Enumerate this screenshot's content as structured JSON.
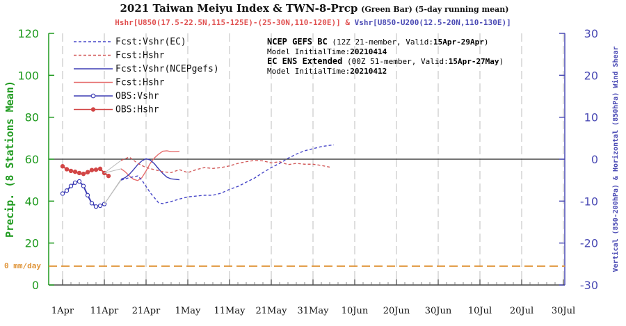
{
  "chart_data": {
    "type": "line",
    "title_main": "2021 Taiwan Meiyu Index & TWN-8-Prcp",
    "title_sub": "(Green Bar) (5-day running mean)",
    "subtitle_hshr": "Hshr[U850(17.5-22.5N,115-125E)-(25-30N,110-120E)]",
    "subtitle_amp": "&",
    "subtitle_vshr": "Vshr[U850-U200(12.5-20N,110-130E)]",
    "ylabel_left": "Precip. (8 Stations Mean)",
    "ylabel_right": "Vertical (850-200hPa) & Horizontal (850hPa) Wind Shear",
    "ylim_left": [
      0,
      120
    ],
    "ylim_right": [
      -30,
      30
    ],
    "left_ticks": [
      "0",
      "20",
      "40",
      "60",
      "80",
      "100",
      "120"
    ],
    "right_ticks": [
      "-30",
      "-20",
      "-10",
      "0",
      "10",
      "20",
      "30"
    ],
    "x_tick_labels": [
      "1Apr",
      "11Apr",
      "21Apr",
      "1May",
      "11May",
      "21May",
      "31May",
      "10Jun",
      "20Jun",
      "30Jun",
      "10Jul",
      "20Jul",
      "30Jul"
    ],
    "x_range_days": [
      0,
      121
    ],
    "zero_mm_label": "0 mm/day",
    "legend": [
      {
        "label": "Fcst:Vshr(EC)",
        "color": "#4646c8",
        "style": "dashed"
      },
      {
        "label": "Fcst:Hshr",
        "color": "#d25a5a",
        "style": "dashed"
      },
      {
        "label": "Fcst:Vshr(NCEPgefs)",
        "color": "#3c3cb4",
        "style": "solid"
      },
      {
        "label": "Fcst:Hshr",
        "color": "#e66e6e",
        "style": "solid"
      },
      {
        "label": "OBS:Vshr",
        "color": "#3c3cb4",
        "style": "open-circle"
      },
      {
        "label": "OBS:Hshr",
        "color": "#d24646",
        "style": "filled-circle"
      }
    ],
    "info": {
      "ncep_title": "NCEP GEFS BC",
      "ncep_detail": " (12Z 21-member, Valid:",
      "ncep_valid": "15Apr-29Apr",
      "ncep_close": ")",
      "ncep_init_label": "Model InitialTime:",
      "ncep_init_value": "20210414",
      "ec_title": "EC ENS Extended",
      "ec_detail": " (00Z 51-member, Valid:",
      "ec_valid": "15Apr-27May",
      "ec_close": ")",
      "ec_init_label": "Model InitialTime:",
      "ec_init_value": "20210412"
    },
    "series": [
      {
        "name": "OBS:Hshr",
        "axis": "right",
        "color": "#d24646",
        "points": [
          [
            0,
            -1.7
          ],
          [
            1,
            -2.4
          ],
          [
            2,
            -2.8
          ],
          [
            3,
            -3.0
          ],
          [
            4,
            -3.3
          ],
          [
            5,
            -3.5
          ],
          [
            6,
            -3.1
          ],
          [
            7,
            -2.6
          ],
          [
            8,
            -2.5
          ],
          [
            9,
            -2.3
          ],
          [
            10,
            -3.3
          ],
          [
            11,
            -4.0
          ]
        ]
      },
      {
        "name": "OBS:Vshr",
        "axis": "right",
        "color": "#3c3cb4",
        "points": [
          [
            0,
            -8.2
          ],
          [
            1,
            -7.5
          ],
          [
            2,
            -6.4
          ],
          [
            3,
            -5.6
          ],
          [
            4,
            -5.3
          ],
          [
            5,
            -6.4
          ],
          [
            6,
            -8.6
          ],
          [
            7,
            -10.5
          ],
          [
            8,
            -11.3
          ],
          [
            9,
            -11.1
          ],
          [
            10,
            -10.7
          ]
        ]
      },
      {
        "name": "Fcst:Hshr (NCEP)",
        "axis": "right",
        "color": "#e66e6e",
        "style": "solid",
        "points": [
          [
            14,
            -2.3
          ],
          [
            15,
            -3.0
          ],
          [
            16,
            -4.0
          ],
          [
            17,
            -4.8
          ],
          [
            18,
            -5.1
          ],
          [
            19,
            -4.4
          ],
          [
            20,
            -2.8
          ],
          [
            21,
            -1.0
          ],
          [
            22,
            0.3
          ],
          [
            23,
            1.2
          ],
          [
            24,
            1.9
          ],
          [
            25,
            2.0
          ],
          [
            26,
            1.8
          ],
          [
            27,
            1.8
          ],
          [
            28,
            1.9
          ]
        ]
      },
      {
        "name": "Fcst:Vshr(NCEPgefs)",
        "axis": "right",
        "color": "#3c3cb4",
        "style": "solid",
        "points": [
          [
            14,
            -4.8
          ],
          [
            15,
            -4.4
          ],
          [
            16,
            -3.6
          ],
          [
            17,
            -2.5
          ],
          [
            18,
            -1.3
          ],
          [
            19,
            -0.4
          ],
          [
            20,
            0.1
          ],
          [
            21,
            -0.2
          ],
          [
            22,
            -1.1
          ],
          [
            23,
            -2.3
          ],
          [
            24,
            -3.4
          ],
          [
            25,
            -4.3
          ],
          [
            26,
            -4.7
          ],
          [
            27,
            -4.8
          ],
          [
            28,
            -4.9
          ]
        ]
      },
      {
        "name": "Fcst:Hshr (EC)",
        "axis": "right",
        "color": "#d25a5a",
        "style": "dashed",
        "points": [
          [
            14,
            -0.3
          ],
          [
            16,
            0.5
          ],
          [
            18,
            -1.0
          ],
          [
            20,
            -2.0
          ],
          [
            22,
            -2.5
          ],
          [
            24,
            -3.0
          ],
          [
            26,
            -3.2
          ],
          [
            28,
            -2.5
          ],
          [
            30,
            -3.2
          ],
          [
            32,
            -2.5
          ],
          [
            34,
            -2.0
          ],
          [
            36,
            -2.2
          ],
          [
            38,
            -2.0
          ],
          [
            40,
            -1.6
          ],
          [
            42,
            -1.0
          ],
          [
            44,
            -0.6
          ],
          [
            46,
            -0.3
          ],
          [
            48,
            -0.4
          ],
          [
            50,
            -0.9
          ],
          [
            52,
            -0.6
          ],
          [
            54,
            -1.3
          ],
          [
            56,
            -1.0
          ],
          [
            58,
            -1.2
          ],
          [
            60,
            -1.2
          ],
          [
            62,
            -1.5
          ],
          [
            64,
            -1.9
          ]
        ]
      },
      {
        "name": "Fcst:Vshr(EC)",
        "axis": "right",
        "color": "#4646c8",
        "style": "dashed",
        "points": [
          [
            14,
            -5.0
          ],
          [
            16,
            -4.4
          ],
          [
            18,
            -4.0
          ],
          [
            19,
            -5.0
          ],
          [
            20,
            -6.5
          ],
          [
            21,
            -8.0
          ],
          [
            22,
            -9.2
          ],
          [
            23,
            -10.4
          ],
          [
            24,
            -10.6
          ],
          [
            26,
            -10.1
          ],
          [
            28,
            -9.5
          ],
          [
            30,
            -9.0
          ],
          [
            32,
            -8.8
          ],
          [
            34,
            -8.6
          ],
          [
            36,
            -8.6
          ],
          [
            38,
            -8.1
          ],
          [
            40,
            -7.2
          ],
          [
            42,
            -6.5
          ],
          [
            44,
            -5.5
          ],
          [
            46,
            -4.5
          ],
          [
            48,
            -3.2
          ],
          [
            50,
            -2.0
          ],
          [
            52,
            -1.0
          ],
          [
            54,
            0.2
          ],
          [
            56,
            1.2
          ],
          [
            58,
            2.0
          ],
          [
            60,
            2.5
          ],
          [
            62,
            3.0
          ],
          [
            64,
            3.3
          ],
          [
            65,
            3.4
          ]
        ]
      },
      {
        "name": "",
        "axis": "right",
        "color": "#bbbbbb",
        "style": "thin",
        "points": [
          [
            10,
            -3.3
          ],
          [
            14,
            -0.3
          ]
        ]
      },
      {
        "name": "",
        "axis": "right",
        "color": "#bbbbbb",
        "style": "thin",
        "points": [
          [
            10,
            -10.7
          ],
          [
            14,
            -5.0
          ]
        ]
      },
      {
        "name": "",
        "axis": "right",
        "color": "#bbbbbb",
        "style": "thin",
        "points": [
          [
            10,
            -10.7
          ],
          [
            14,
            -4.8
          ]
        ]
      },
      {
        "name": "",
        "axis": "right",
        "color": "#bbbbbb",
        "style": "thin",
        "points": [
          [
            10,
            -3.3
          ],
          [
            14,
            -2.3
          ]
        ]
      }
    ],
    "reference_lines": [
      {
        "axis": "right",
        "value": 0,
        "color": "#222222",
        "style": "solid"
      },
      {
        "axis": "left",
        "value": 9,
        "color": "#e0963c",
        "style": "dashed"
      }
    ],
    "vertical_gridlines_days": [
      0,
      10,
      20,
      30,
      40,
      50,
      60,
      70,
      80,
      90,
      100,
      110,
      120
    ],
    "colors": {
      "left_axis": "#1e9a1e",
      "right_axis": "#4a4ab4",
      "hshr_red": "#e05050",
      "zero_line_orange": "#e0963c",
      "grid": "#c8c8c8"
    }
  }
}
